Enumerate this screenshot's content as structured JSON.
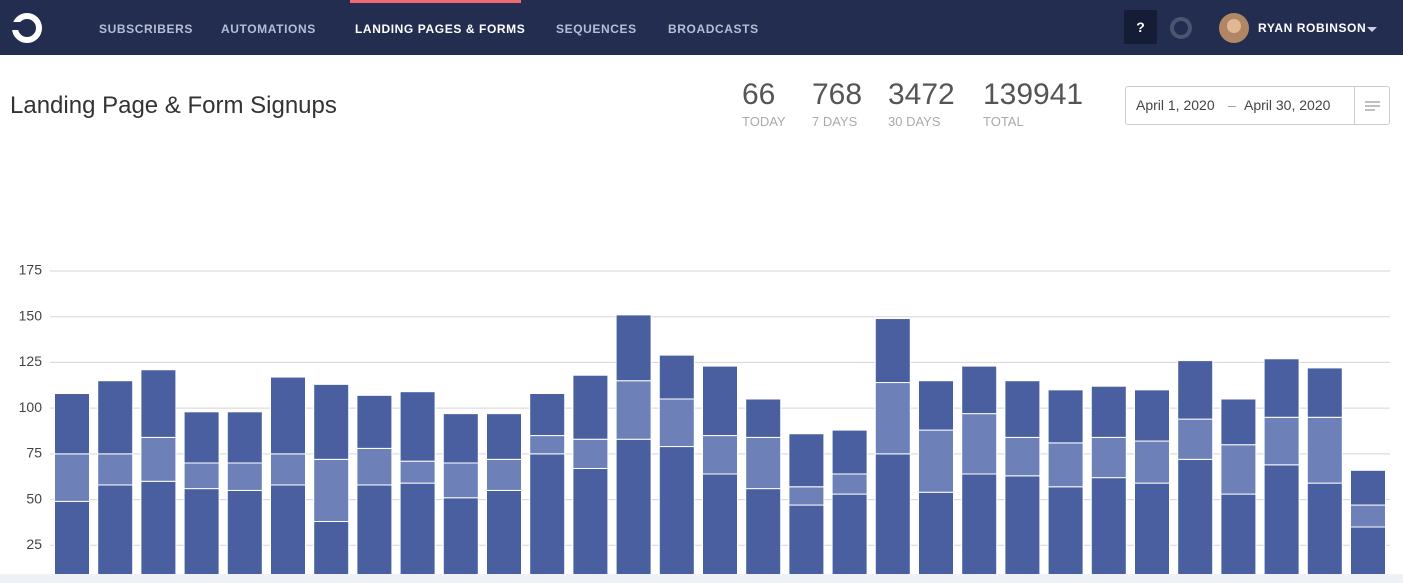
{
  "nav": {
    "items": [
      "SUBSCRIBERS",
      "AUTOMATIONS",
      "LANDING PAGES & FORMS",
      "SEQUENCES",
      "BROADCASTS"
    ],
    "help": "?",
    "user": "RYAN ROBINSON"
  },
  "header": {
    "title": "Landing Page & Form Signups"
  },
  "stats": [
    {
      "value": 66,
      "label": "TODAY"
    },
    {
      "value": 768,
      "label": "7 DAYS"
    },
    {
      "value": 3472,
      "label": "30 DAYS"
    },
    {
      "value": 139941,
      "label": "TOTAL"
    }
  ],
  "date_range": {
    "start": "April 1, 2020",
    "separator": "–",
    "end": "April 30, 2020"
  },
  "chart_data": {
    "type": "stacked_bar",
    "ylim": [
      0,
      175
    ],
    "yticks": [
      25,
      50,
      75,
      100,
      125,
      150,
      175
    ],
    "grid": true,
    "series": [
      {
        "color": "#4a5f9f",
        "values": [
          49,
          58,
          60,
          56,
          55,
          58,
          38,
          58,
          59,
          51,
          55,
          75,
          67,
          83,
          79,
          64,
          56,
          47,
          53,
          75,
          54,
          64,
          63,
          57,
          62,
          59,
          72,
          53,
          69,
          59,
          35
        ]
      },
      {
        "color": "#6e80b8",
        "values": [
          26,
          17,
          24,
          14,
          15,
          17,
          34,
          20,
          12,
          19,
          17,
          10,
          16,
          32,
          26,
          21,
          28,
          10,
          11,
          39,
          34,
          33,
          21,
          24,
          22,
          23,
          22,
          27,
          26,
          36,
          12
        ]
      },
      {
        "color": "#4a5f9f",
        "values": [
          33,
          40,
          37,
          28,
          28,
          42,
          41,
          29,
          38,
          27,
          25,
          23,
          35,
          36,
          24,
          38,
          21,
          29,
          24,
          35,
          27,
          26,
          31,
          29,
          28,
          28,
          32,
          25,
          32,
          27,
          19
        ]
      }
    ]
  }
}
